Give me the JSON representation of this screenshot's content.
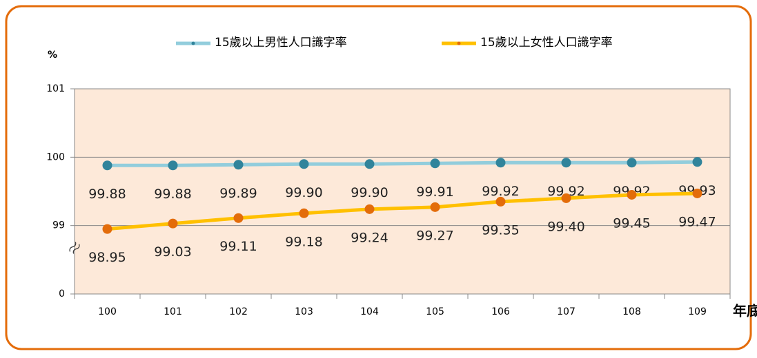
{
  "chart_data": {
    "type": "line",
    "y_axis_label": "%",
    "x_axis_label": "年底",
    "categories": [
      "100",
      "101",
      "102",
      "103",
      "104",
      "105",
      "106",
      "107",
      "108",
      "109"
    ],
    "series": [
      {
        "name": "15歲以上男性人口識字率",
        "color": "#92cddc",
        "marker_color": "#31849b",
        "values": [
          99.88,
          99.88,
          99.89,
          99.9,
          99.9,
          99.91,
          99.92,
          99.92,
          99.92,
          99.93
        ],
        "value_labels": [
          "99.88",
          "99.88",
          "99.89",
          "99.90",
          "99.90",
          "99.91",
          "99.92",
          "99.92",
          "99.92",
          "99.93"
        ]
      },
      {
        "name": "15歲以上女性人口識字率",
        "color": "#ffc000",
        "marker_color": "#e36c0a",
        "values": [
          98.95,
          99.03,
          99.11,
          99.18,
          99.24,
          99.27,
          99.35,
          99.4,
          99.45,
          99.47
        ],
        "value_labels": [
          "98.95",
          "99.03",
          "99.11",
          "99.18",
          "99.24",
          "99.27",
          "99.35",
          "99.40",
          "99.45",
          "99.47"
        ]
      }
    ],
    "ylim": [
      0,
      101
    ],
    "yticks": [
      0,
      99,
      100,
      101
    ],
    "axis_break": [
      0,
      98
    ],
    "grid": true,
    "plot_background": "#fde9d9",
    "legend": "top"
  }
}
